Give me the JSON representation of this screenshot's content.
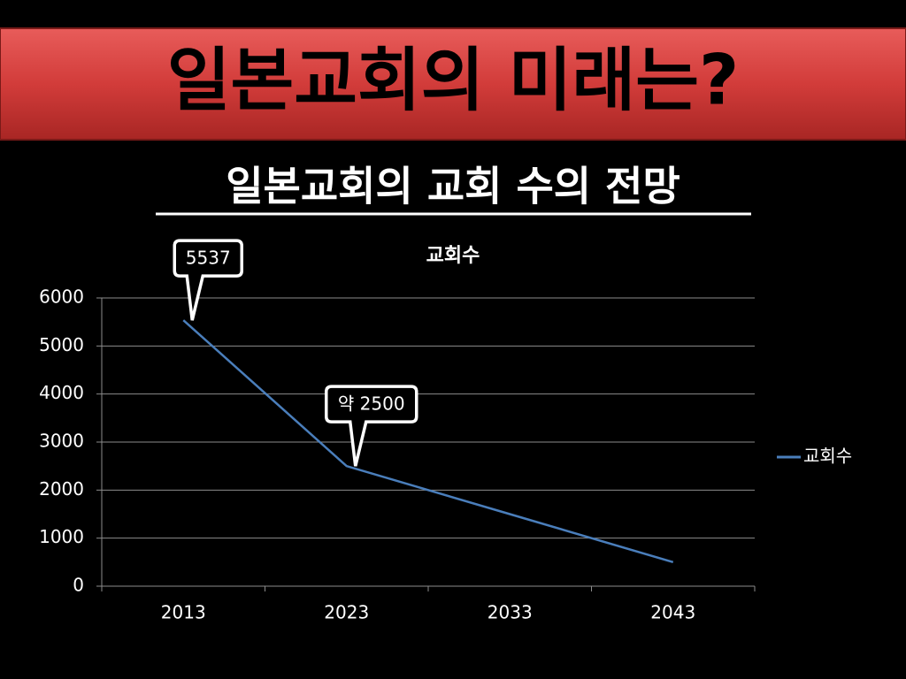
{
  "slide": {
    "title": "일본교회의 미래는?",
    "subtitle": "일본교회의 교회 수의 전망"
  },
  "chart_data": {
    "type": "line",
    "title": "교회수",
    "categories": [
      "2013",
      "2023",
      "2033",
      "2043"
    ],
    "series": [
      {
        "name": "교회수",
        "color": "#4a7ebb",
        "values": [
          5537,
          2500,
          1500,
          500
        ],
        "value_labels": [
          "5537",
          "약 2500",
          null,
          null
        ]
      }
    ],
    "ylim": [
      0,
      6000
    ],
    "yticks": [
      0,
      1000,
      2000,
      3000,
      4000,
      5000,
      6000
    ],
    "grid": true,
    "legend": "right"
  }
}
